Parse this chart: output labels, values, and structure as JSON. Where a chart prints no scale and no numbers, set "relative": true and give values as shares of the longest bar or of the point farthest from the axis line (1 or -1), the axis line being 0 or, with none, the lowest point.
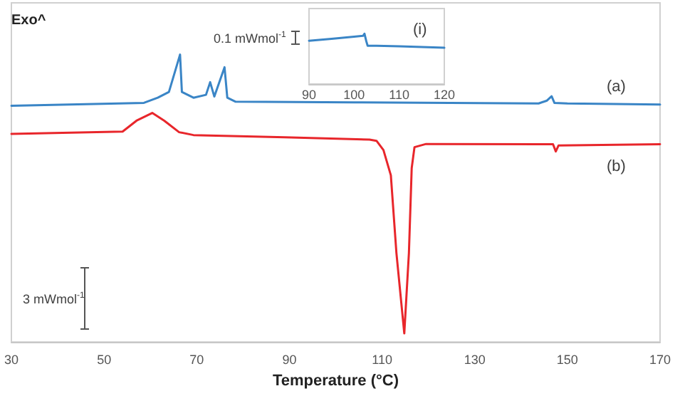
{
  "chart_data": [
    {
      "type": "line",
      "relative": true,
      "xlabel": "Temperature (°C)",
      "xlim": [
        30,
        170
      ],
      "xticks": [
        30,
        50,
        70,
        90,
        110,
        130,
        150,
        170
      ],
      "grid": false,
      "marker": "none",
      "line_style": "solid",
      "annotations": [
        "Exo^",
        "(a)",
        "(b)",
        "3 mWmol$^{-1}$"
      ],
      "series": [
        {
          "color": "#3a85c6",
          "x": [
            30,
            58.6,
            61.6,
            64,
            66.4,
            66.8,
            69.3,
            72,
            72.9,
            73.8,
            76,
            76.6,
            78.4,
            104,
            143.8,
            145.6,
            146.6,
            147.2,
            150,
            170
          ],
          "values": [
            0.822,
            0.832,
            0.85,
            0.87,
            1.0,
            0.87,
            0.85,
            0.86,
            0.904,
            0.854,
            0.956,
            0.85,
            0.836,
            0.834,
            0.83,
            0.84,
            0.855,
            0.832,
            0.83,
            0.826
          ]
        },
        {
          "color": "#e8262b",
          "x": [
            30,
            54,
            57,
            60.4,
            63,
            66.2,
            69.3,
            89,
            107.3,
            108.8,
            110.3,
            111.9,
            113.1,
            114.8,
            115.8,
            116.4,
            117,
            119.5,
            146.9,
            147.5,
            148.1,
            170
          ],
          "values": [
            0.724,
            0.732,
            0.77,
            0.797,
            0.77,
            0.73,
            0.72,
            0.712,
            0.704,
            0.7,
            0.668,
            0.58,
            0.31,
            0.03,
            0.31,
            0.605,
            0.678,
            0.689,
            0.688,
            0.663,
            0.684,
            0.688
          ]
        }
      ]
    },
    {
      "type": "line",
      "relative": true,
      "xlim": [
        90,
        120
      ],
      "xticks": [
        90,
        100,
        110,
        120
      ],
      "grid": false,
      "marker": "none",
      "line_style": "solid",
      "annotations": [
        "(i)",
        "0.1 mWmol$^{-1}$"
      ],
      "series": [
        {
          "color": "#3a85c6",
          "x": [
            90,
            95,
            100,
            102,
            102.3,
            102.7,
            103,
            105,
            110,
            120
          ],
          "values": [
            0.86,
            0.9,
            0.94,
            0.96,
            1.0,
            0.85,
            0.76,
            0.76,
            0.75,
            0.72
          ]
        }
      ]
    }
  ]
}
